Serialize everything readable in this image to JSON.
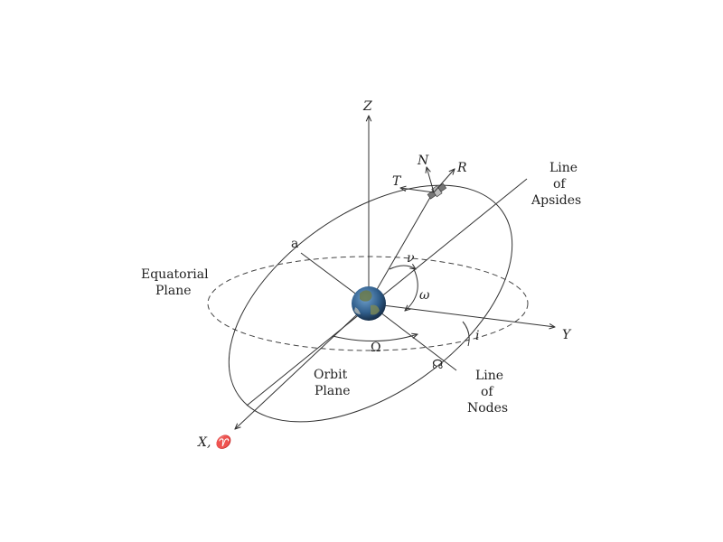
{
  "labels": {
    "z_axis": "Z",
    "y_axis": "Y",
    "x_axis": "X, ♈",
    "line_of_apsides_1": "Line",
    "line_of_apsides_2": "of",
    "line_of_apsides_3": "Apsides",
    "line_of_nodes_1": "Line",
    "line_of_nodes_2": "of",
    "line_of_nodes_3": "Nodes",
    "equatorial_1": "Equatorial",
    "equatorial_2": "Plane",
    "orbit_1": "Orbit",
    "orbit_2": "Plane",
    "semi_major": "a",
    "true_anomaly": "ν",
    "arg_periapsis": "ω",
    "raan": "Ω",
    "inclination": "i",
    "ascending_node": "☊",
    "normal_vec": "N",
    "radial_vec": "R",
    "tangential_vec": "T"
  },
  "colors": {
    "line": "#333333",
    "earth_ocean": "#2f5d8a",
    "earth_land": "#6b7a4a",
    "satellite": "#555555"
  }
}
